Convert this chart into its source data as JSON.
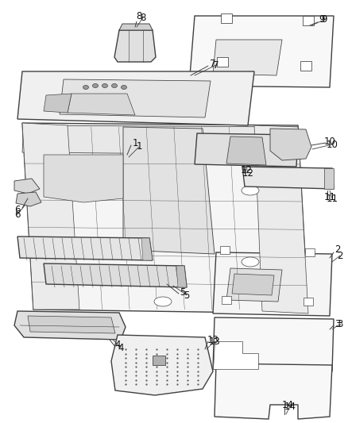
{
  "background_color": "#ffffff",
  "line_color": "#404040",
  "label_color": "#111111",
  "label_fontsize": 8.5,
  "fig_width": 4.38,
  "fig_height": 5.33,
  "dpi": 100
}
